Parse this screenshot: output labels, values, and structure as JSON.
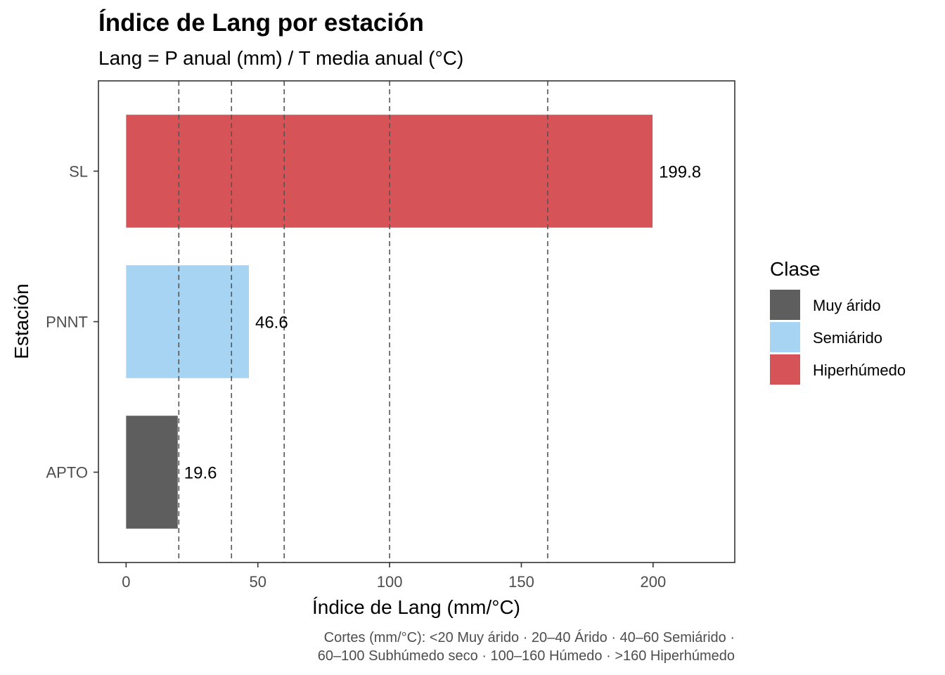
{
  "chart_data": {
    "type": "bar",
    "orientation": "horizontal",
    "title": "Índice de Lang por estación",
    "subtitle": "Lang = P anual (mm) / T media anual (°C)",
    "xlabel": "Índice de Lang (mm/°C)",
    "ylabel": "Estación",
    "xlim": [
      -10.5,
      231
    ],
    "xticks": [
      0,
      50,
      100,
      150,
      200
    ],
    "xtick_labels": [
      "0",
      "50",
      "100",
      "150",
      "200"
    ],
    "categories": [
      "APTO",
      "PNNT",
      "SL"
    ],
    "values": [
      19.6,
      46.6,
      199.8
    ],
    "value_labels": [
      "19.6",
      "46.6",
      "199.8"
    ],
    "classes": [
      "Muy árido",
      "Semiárido",
      "Hiperhúmedo"
    ],
    "bar_colors": [
      "#5e5e5e",
      "#a7d4f2",
      "#d65457"
    ],
    "reference_lines": [
      20,
      40,
      60,
      100,
      160
    ],
    "reference_line_style": "dashed",
    "grid": false,
    "legend": {
      "title": "Clase",
      "placement": "right",
      "entries": [
        {
          "label": "Muy árido",
          "color": "#5e5e5e"
        },
        {
          "label": "Semiárido",
          "color": "#a7d4f2"
        },
        {
          "label": "Hiperhúmedo",
          "color": "#d65457"
        }
      ]
    },
    "caption": [
      "Cortes (mm/°C): <20 Muy árido · 20–40 Árido · 40–60 Semiárido ·",
      "60–100 Subhúmedo seco · 100–160 Húmedo · >160 Hiperhúmedo"
    ]
  }
}
